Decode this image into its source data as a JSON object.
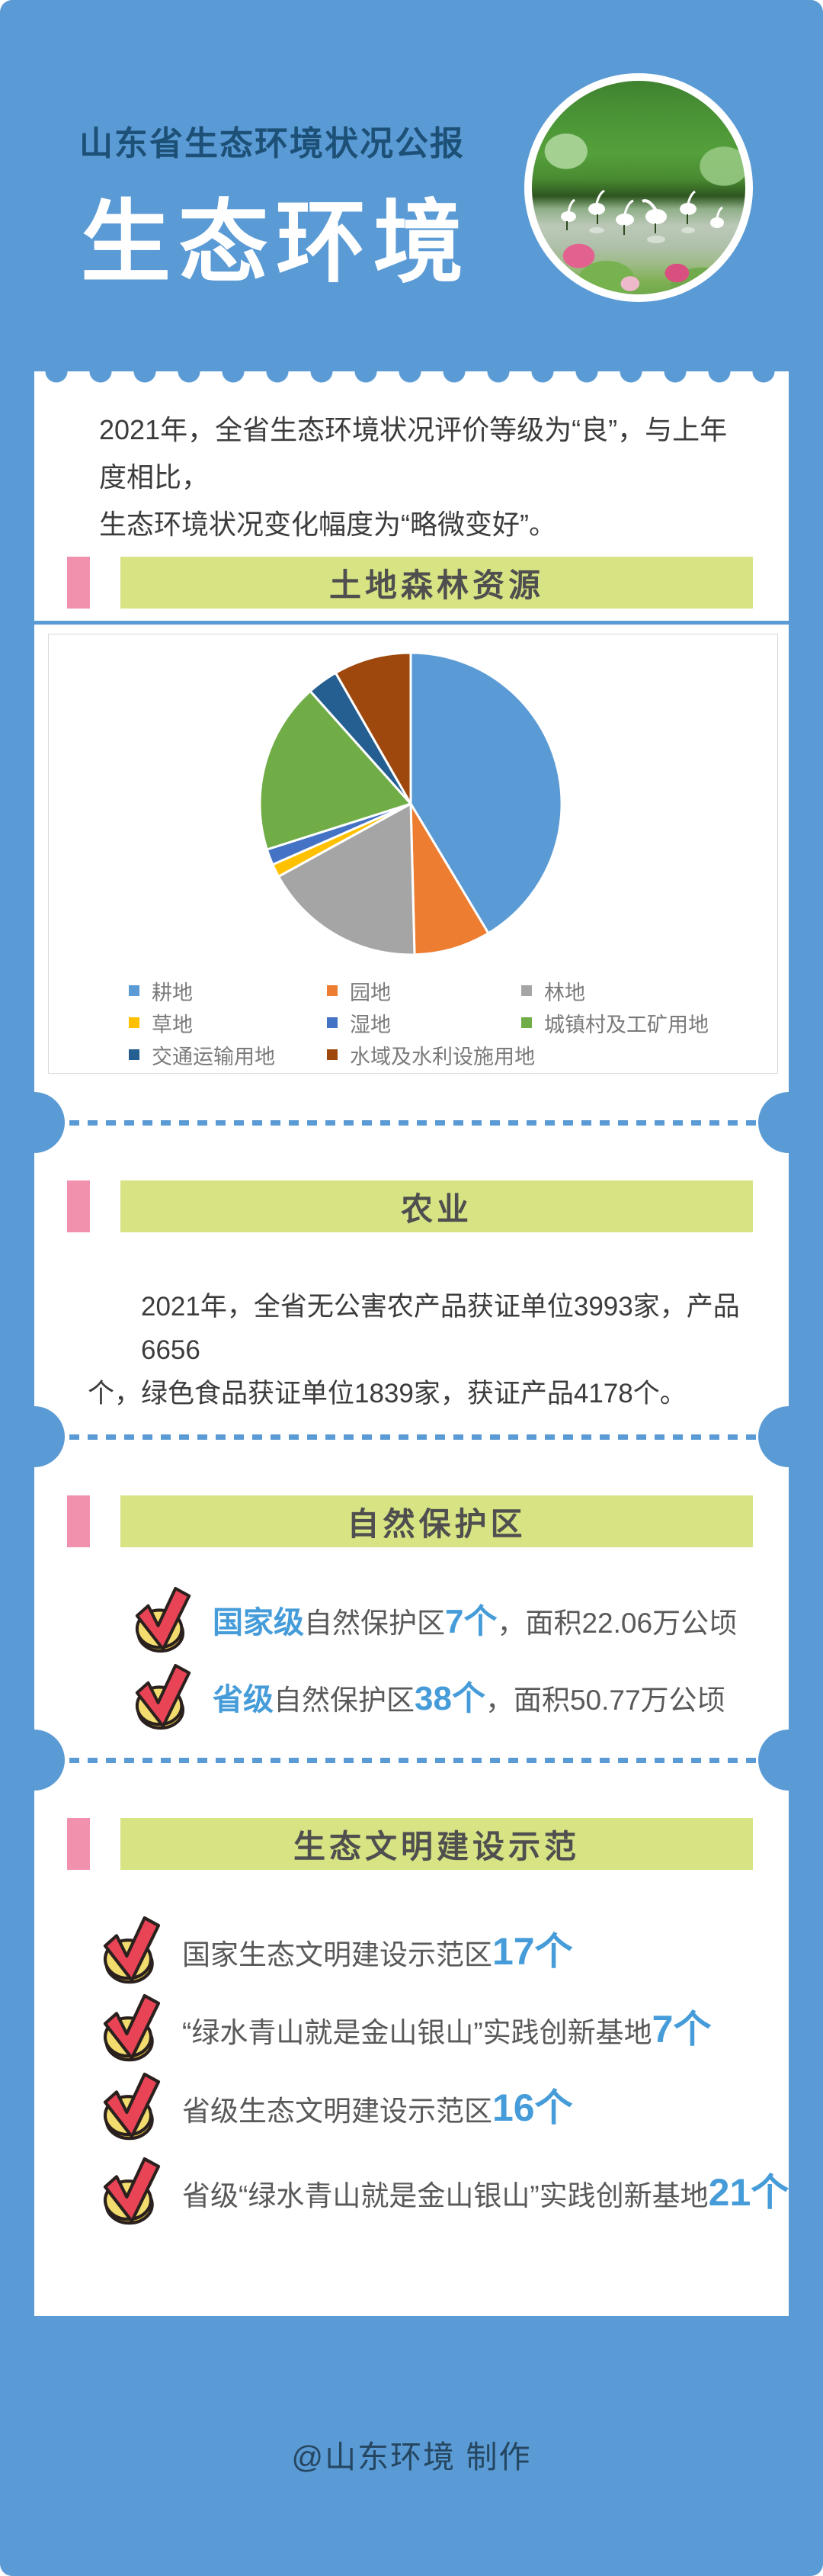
{
  "poster": {
    "header": {
      "subtitle": "山东省生态环境状况公报",
      "title": "生态环境"
    },
    "intro": {
      "lines": [
        "2021年，全省生态环境状况评价等级为“良”，与上年度相比，",
        "生态环境状况变化幅度为“略微变好”。"
      ]
    },
    "sections": {
      "land": {
        "title": "土地森林资源"
      },
      "agriculture": {
        "title": "农业",
        "lines": [
          "2021年，全省无公害农产品获证单位3993家，产品6656",
          "个，绿色食品获证单位1839家，获证产品4178个。"
        ]
      },
      "nature": {
        "title": "自然保护区",
        "items": [
          {
            "level": "国家级",
            "mid": "自然保护区",
            "num": "7个",
            "rest": "，面积22.06万公顷"
          },
          {
            "level": "省级",
            "mid": "自然保护区",
            "num": "38个",
            "rest": "，面积50.77万公顷"
          }
        ]
      },
      "eco": {
        "title": "生态文明建设示范",
        "items": [
          {
            "label": "国家生态文明建设示范区",
            "num": "17个"
          },
          {
            "label": "“绿水青山就是金山银山”实践创新基地",
            "num": "7个"
          },
          {
            "label": "省级生态文明建设示范区",
            "num": "16个"
          },
          {
            "label": "省级“绿水青山就是金山银山”实践创新基地",
            "num": "21个"
          }
        ]
      }
    },
    "footer": {
      "credit": "@山东环境 制作"
    },
    "colors": {
      "background_blue": "#5B9BD5",
      "subtitle_navy": "#1D5076",
      "accent_pink": "#F191AE",
      "banner_green": "#D8E383",
      "accent_blue_text": "#459CD9",
      "check_red": "#E94356",
      "coin_yellow": "#F2DC6E",
      "footer_navy": "#254660"
    }
  },
  "chart_data": {
    "type": "pie",
    "title": "土地森林资源",
    "labels": [
      "耕地",
      "园地",
      "林地",
      "草地",
      "湿地",
      "城镇村及工矿用地",
      "交通运输用地",
      "水域及水利设施用地"
    ],
    "values": [
      41.4,
      8.2,
      17.4,
      1.4,
      1.7,
      18.3,
      3.3,
      8.3
    ],
    "unit": "%",
    "colors": [
      "#5B9BD5",
      "#ED7D31",
      "#A5A5A5",
      "#FFC000",
      "#4472C4",
      "#70AD47",
      "#255E91",
      "#9E480E"
    ],
    "start_angle_deg": -90,
    "direction": "clockwise",
    "legend_position": "bottom",
    "legend_columns": 3
  }
}
